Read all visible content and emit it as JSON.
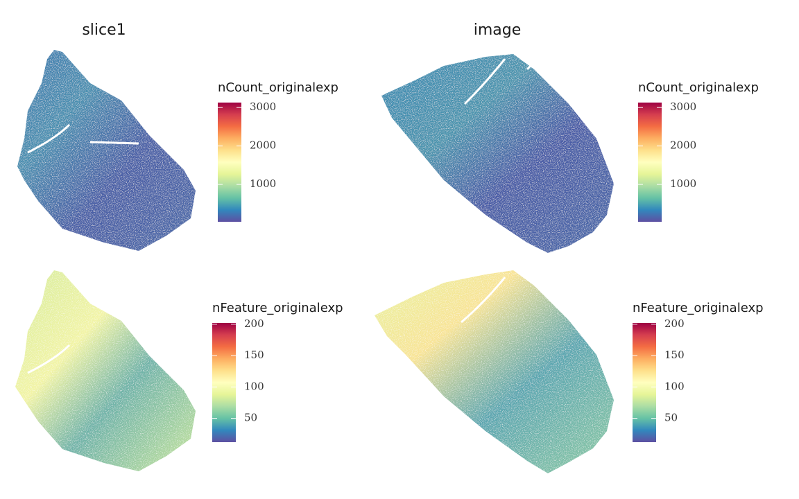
{
  "chart_data": [
    {
      "type": "spatial",
      "title": "slice1",
      "legend": {
        "title": "nCount_originalexp",
        "lim": [
          27,
          3130
        ],
        "ticks": [
          1000,
          2000,
          3000
        ],
        "colors": [
          "#5E4FA2",
          "#3288BD",
          "#66C2A5",
          "#ABDDA4",
          "#E6F598",
          "#FFFFBF",
          "#FEE08B",
          "#FDAE61",
          "#F46D43",
          "#D53E4F",
          "#9E0142"
        ]
      }
    },
    {
      "type": "spatial",
      "title": "image",
      "legend": {
        "title": "nCount_originalexp",
        "lim": [
          27,
          3130
        ],
        "ticks": [
          1000,
          2000,
          3000
        ],
        "colors": [
          "#5E4FA2",
          "#3288BD",
          "#66C2A5",
          "#ABDDA4",
          "#E6F598",
          "#FFFFBF",
          "#FEE08B",
          "#FDAE61",
          "#F46D43",
          "#D53E4F",
          "#9E0142"
        ]
      }
    },
    {
      "type": "spatial",
      "legend": {
        "title": "nFeature_originalexp",
        "lim": [
          12,
          202
        ],
        "ticks": [
          50,
          100,
          150,
          200
        ],
        "colors": [
          "#5E4FA2",
          "#3288BD",
          "#66C2A5",
          "#ABDDA4",
          "#E6F598",
          "#FFFFBF",
          "#FEE08B",
          "#FDAE61",
          "#F46D43",
          "#D53E4F",
          "#9E0142"
        ]
      }
    },
    {
      "type": "spatial",
      "legend": {
        "title": "nFeature_originalexp",
        "lim": [
          12,
          202
        ],
        "ticks": [
          50,
          100,
          150,
          200
        ],
        "colors": [
          "#5E4FA2",
          "#3288BD",
          "#66C2A5",
          "#ABDDA4",
          "#E6F598",
          "#FFFFBF",
          "#FEE08B",
          "#FDAE61",
          "#F46D43",
          "#D53E4F",
          "#9E0142"
        ]
      }
    }
  ]
}
